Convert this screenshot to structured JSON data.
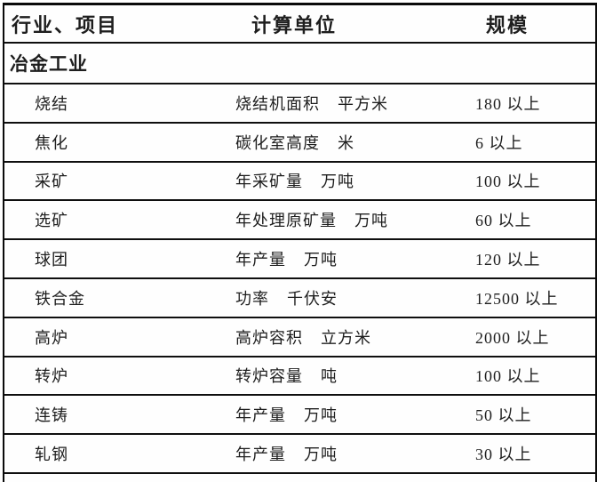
{
  "table": {
    "headers": {
      "industry_project": "行业、项目",
      "calc_unit": "计算单位",
      "scale": "规模"
    },
    "section_title": "冶金工业",
    "rows": [
      {
        "project": "烧结",
        "measure": "烧结机面积",
        "unit": "平方米",
        "scale": "180 以上"
      },
      {
        "project": "焦化",
        "measure": "碳化室高度",
        "unit": "米",
        "scale": "6 以上"
      },
      {
        "project": "采矿",
        "measure": "年采矿量",
        "unit": "万吨",
        "scale": "100 以上"
      },
      {
        "project": "选矿",
        "measure": "年处理原矿量",
        "unit": "万吨",
        "scale": "60 以上"
      },
      {
        "project": "球团",
        "measure": "年产量",
        "unit": "万吨",
        "scale": "120 以上"
      },
      {
        "project": "铁合金",
        "measure": "功率",
        "unit": "千伏安",
        "scale": "12500 以上"
      },
      {
        "project": "高炉",
        "measure": "高炉容积",
        "unit": "立方米",
        "scale": "2000 以上"
      },
      {
        "project": "转炉",
        "measure": "转炉容量",
        "unit": "吨",
        "scale": "100 以上"
      },
      {
        "project": "连铸",
        "measure": "年产量",
        "unit": "万吨",
        "scale": "50 以上"
      },
      {
        "project": "轧钢",
        "measure": "年产量",
        "unit": "万吨",
        "scale": "30 以上"
      }
    ],
    "colors": {
      "text": "#1e1e1e",
      "border": "#0f0f0f",
      "background": "#ffffff"
    }
  }
}
